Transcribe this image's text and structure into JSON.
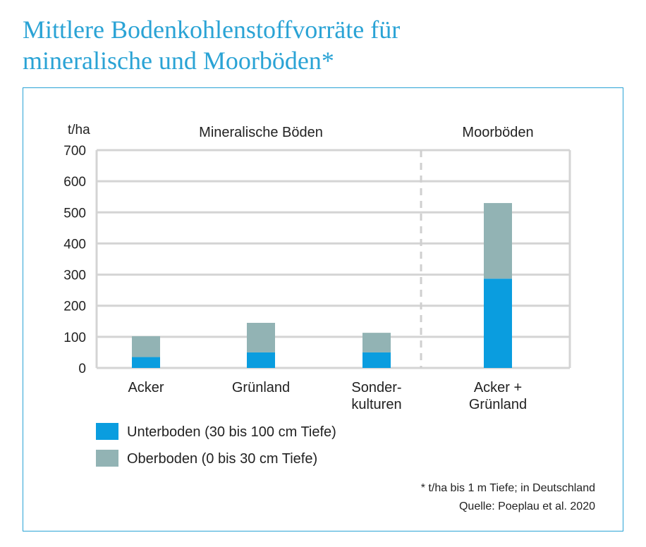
{
  "title": {
    "line1": "Mittlere Bodenkohlenstoffvorräte für",
    "line2": "mineralische und Moorböden*"
  },
  "chart_data": {
    "type": "bar",
    "stacked": true,
    "ylabel": "t/ha",
    "ylim": [
      0,
      700
    ],
    "yticks": [
      0,
      100,
      200,
      300,
      400,
      500,
      600,
      700
    ],
    "grid": true,
    "groups": [
      {
        "label": "Mineralische Böden",
        "categories": [
          "Acker",
          "Grünland",
          "Sonder-kulturen"
        ]
      },
      {
        "label": "Moorböden",
        "categories": [
          "Acker + Grünland"
        ]
      }
    ],
    "categories": [
      {
        "lines": [
          "Acker"
        ]
      },
      {
        "lines": [
          "Grünland"
        ]
      },
      {
        "lines": [
          "Sonder-",
          "kulturen"
        ]
      },
      {
        "lines": [
          "Acker +",
          "Grünland"
        ]
      }
    ],
    "series": [
      {
        "name": "Unterboden (30 bis 100 cm Tiefe)",
        "color": "#0a9ddf",
        "values": [
          35,
          50,
          50,
          287
        ]
      },
      {
        "name": "Oberboden (0 bis 30 cm Tiefe)",
        "color": "#92b3b4",
        "values": [
          67,
          95,
          63,
          243
        ]
      }
    ],
    "legend_position": "bottom-left"
  },
  "footnote": {
    "line1": "* t/ha bis 1 m Tiefe; in Deutschland",
    "line2": "Quelle: Poeplau et al. 2020"
  },
  "colors": {
    "title": "#2aa3d5",
    "frame": "#2aa3d5",
    "grid": "#d4d4d4",
    "divider": "#cfcfcf",
    "text": "#222222"
  }
}
